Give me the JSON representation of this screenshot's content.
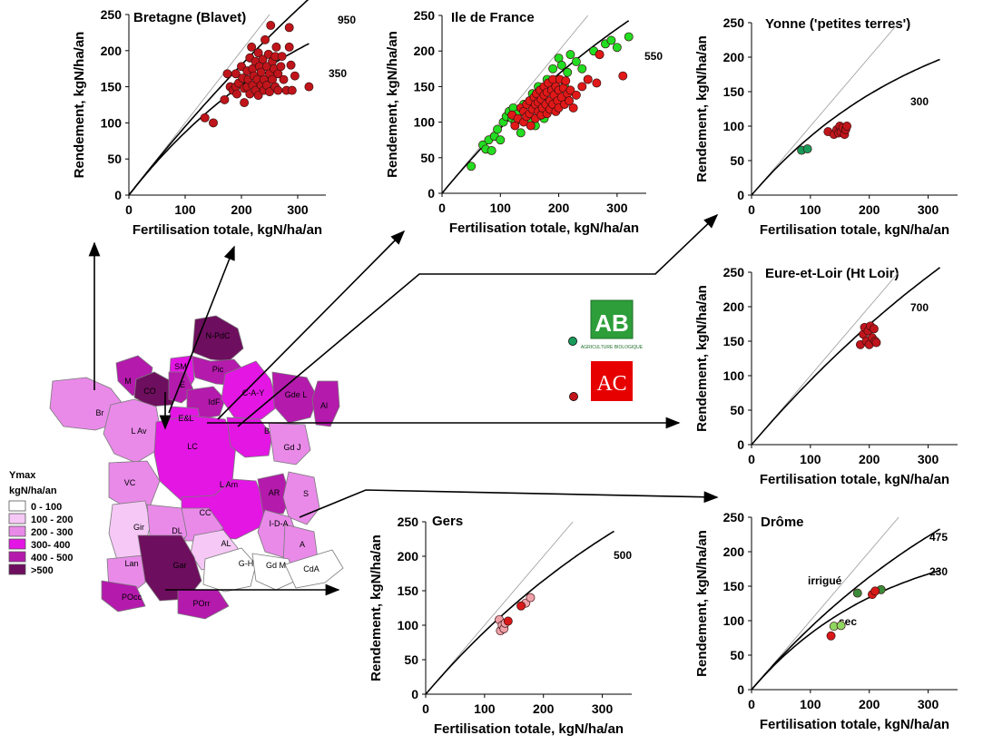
{
  "chart_data": [
    {
      "id": "bretagne",
      "type": "scatter",
      "title": "Bretagne (Blavet)",
      "xlabel": "Fertilisation totale, kgN/ha/an",
      "ylabel": "Rendement, kgN/ha/an",
      "xlim": [
        0,
        350
      ],
      "ylim": [
        0,
        250
      ],
      "xticks": [
        "0",
        "100",
        "200",
        "300"
      ],
      "yticks": [
        "0",
        "50",
        "100",
        "150",
        "200",
        "250"
      ],
      "curves": [
        {
          "ymax": 950,
          "label": "950"
        },
        {
          "ymax": 350,
          "label": "350"
        }
      ],
      "series": [
        {
          "color": "#c0151b",
          "points": [
            [
              135,
              107
            ],
            [
              150,
              100
            ],
            [
              170,
              132
            ],
            [
              175,
              168
            ],
            [
              180,
              150
            ],
            [
              185,
              145
            ],
            [
              190,
              168
            ],
            [
              190,
              150
            ],
            [
              192,
              140
            ],
            [
              195,
              155
            ],
            [
              200,
              178
            ],
            [
              202,
              162
            ],
            [
              205,
              148
            ],
            [
              205,
              128
            ],
            [
              210,
              172
            ],
            [
              210,
              150
            ],
            [
              212,
              160
            ],
            [
              215,
              190
            ],
            [
              215,
              140
            ],
            [
              218,
              205
            ],
            [
              220,
              175
            ],
            [
              220,
              152
            ],
            [
              222,
              165
            ],
            [
              225,
              185
            ],
            [
              225,
              145
            ],
            [
              228,
              160
            ],
            [
              230,
              197
            ],
            [
              230,
              138
            ],
            [
              232,
              178
            ],
            [
              235,
              170
            ],
            [
              235,
              152
            ],
            [
              238,
              188
            ],
            [
              240,
              160
            ],
            [
              240,
              145
            ],
            [
              242,
              215
            ],
            [
              245,
              178
            ],
            [
              245,
              152
            ],
            [
              248,
              195
            ],
            [
              250,
              168
            ],
            [
              250,
              143
            ],
            [
              252,
              235
            ],
            [
              255,
              185
            ],
            [
              255,
              160
            ],
            [
              258,
              175
            ],
            [
              260,
              150
            ],
            [
              260,
              192
            ],
            [
              262,
              205
            ],
            [
              265,
              168
            ],
            [
              265,
              145
            ],
            [
              270,
              178
            ],
            [
              272,
              192
            ],
            [
              275,
              160
            ],
            [
              280,
              145
            ],
            [
              285,
              232
            ],
            [
              285,
              205
            ],
            [
              288,
              180
            ],
            [
              290,
              145
            ],
            [
              295,
              165
            ],
            [
              320,
              150
            ]
          ]
        }
      ]
    },
    {
      "id": "idf",
      "type": "scatter",
      "title": "Ile de France",
      "xlabel": "Fertilisation totale, kgN/ha/an",
      "ylabel": "Rendement, kgN/ha/an",
      "xlim": [
        0,
        350
      ],
      "ylim": [
        0,
        250
      ],
      "xticks": [
        "0",
        "100",
        "200",
        "300"
      ],
      "yticks": [
        "0",
        "50",
        "100",
        "150",
        "200",
        "250"
      ],
      "curves": [
        {
          "ymax": 550,
          "label": "550"
        }
      ],
      "series": [
        {
          "color": "#22dd22",
          "points": [
            [
              50,
              38
            ],
            [
              70,
              68
            ],
            [
              75,
              62
            ],
            [
              80,
              75
            ],
            [
              85,
              60
            ],
            [
              90,
              80
            ],
            [
              95,
              90
            ],
            [
              100,
              75
            ],
            [
              105,
              100
            ],
            [
              110,
              108
            ],
            [
              115,
              115
            ],
            [
              120,
              105
            ],
            [
              122,
              120
            ],
            [
              125,
              98
            ],
            [
              130,
              112
            ],
            [
              135,
              85
            ],
            [
              140,
              125
            ],
            [
              145,
              110
            ],
            [
              150,
              130
            ],
            [
              150,
              100
            ],
            [
              155,
              140
            ],
            [
              160,
              118
            ],
            [
              160,
              95
            ],
            [
              165,
              150
            ],
            [
              170,
              135
            ],
            [
              175,
              105
            ],
            [
              180,
              160
            ],
            [
              185,
              145
            ],
            [
              190,
              175
            ],
            [
              195,
              120
            ],
            [
              200,
              190
            ],
            [
              200,
              160
            ],
            [
              205,
              180
            ],
            [
              210,
              150
            ],
            [
              215,
              170
            ],
            [
              220,
              195
            ],
            [
              230,
              185
            ],
            [
              240,
              175
            ],
            [
              250,
              160
            ],
            [
              260,
              200
            ],
            [
              270,
              195
            ],
            [
              280,
              210
            ],
            [
              290,
              215
            ],
            [
              300,
              205
            ],
            [
              320,
              220
            ]
          ]
        },
        {
          "color": "#e01818",
          "points": [
            [
              120,
              110
            ],
            [
              125,
              95
            ],
            [
              130,
              105
            ],
            [
              135,
              120
            ],
            [
              140,
              100
            ],
            [
              140,
              115
            ],
            [
              145,
              125
            ],
            [
              145,
              108
            ],
            [
              150,
              130
            ],
            [
              150,
              112
            ],
            [
              152,
              95
            ],
            [
              155,
              118
            ],
            [
              158,
              135
            ],
            [
              160,
              105
            ],
            [
              160,
              125
            ],
            [
              162,
              140
            ],
            [
              165,
              115
            ],
            [
              165,
              128
            ],
            [
              168,
              145
            ],
            [
              170,
              110
            ],
            [
              170,
              132
            ],
            [
              172,
              120
            ],
            [
              175,
              150
            ],
            [
              175,
              138
            ],
            [
              178,
              125
            ],
            [
              180,
              112
            ],
            [
              180,
              142
            ],
            [
              182,
              155
            ],
            [
              185,
              130
            ],
            [
              185,
              118
            ],
            [
              188,
              145
            ],
            [
              190,
              160
            ],
            [
              190,
              125
            ],
            [
              192,
              138
            ],
            [
              195,
              150
            ],
            [
              195,
              115
            ],
            [
              198,
              130
            ],
            [
              200,
              145
            ],
            [
              200,
              120
            ],
            [
              202,
              160
            ],
            [
              205,
              135
            ],
            [
              208,
              148
            ],
            [
              210,
              125
            ],
            [
              212,
              158
            ],
            [
              215,
              140
            ],
            [
              218,
              130
            ],
            [
              220,
              145
            ],
            [
              225,
              120
            ],
            [
              230,
              138
            ],
            [
              240,
              150
            ],
            [
              250,
              160
            ],
            [
              265,
              155
            ],
            [
              270,
              195
            ],
            [
              310,
              165
            ]
          ]
        }
      ]
    },
    {
      "id": "yonne",
      "type": "scatter",
      "title": "Yonne ('petites terres')",
      "xlabel": "Fertilisation totale, kgN/ha/an",
      "ylabel": "Rendement, kgN/ha/an",
      "xlim": [
        0,
        350
      ],
      "ylim": [
        0,
        250
      ],
      "xticks": [
        "0",
        "100",
        "200",
        "300"
      ],
      "yticks": [
        "0",
        "50",
        "100",
        "150",
        "200",
        "250"
      ],
      "curves": [
        {
          "ymax": 300,
          "label": "300"
        }
      ],
      "series": [
        {
          "color": "#1a9a5a",
          "points": [
            [
              85,
              65
            ],
            [
              95,
              67
            ]
          ]
        },
        {
          "color": "#c0151b",
          "points": [
            [
              130,
              92
            ],
            [
              140,
              88
            ],
            [
              145,
              95
            ],
            [
              148,
              90
            ],
            [
              150,
              100
            ],
            [
              152,
              92
            ],
            [
              155,
              98
            ],
            [
              158,
              88
            ],
            [
              160,
              95
            ],
            [
              162,
              100
            ]
          ]
        }
      ]
    },
    {
      "id": "eure",
      "type": "scatter",
      "title": "Eure-et-Loir (Ht Loir)",
      "xlabel": "Fertilisation totale, kgN/ha/an",
      "ylabel": "Rendement, kgN/ha/an",
      "xlim": [
        0,
        350
      ],
      "ylim": [
        0,
        250
      ],
      "xticks": [
        "0",
        "100",
        "200",
        "300"
      ],
      "yticks": [
        "0",
        "50",
        "100",
        "150",
        "200",
        "250"
      ],
      "curves": [
        {
          "ymax": 700,
          "label": "700"
        }
      ],
      "series": [
        {
          "color": "#c0151b",
          "points": [
            [
              185,
              145
            ],
            [
              190,
              160
            ],
            [
              192,
              170
            ],
            [
              195,
              150
            ],
            [
              198,
              165
            ],
            [
              200,
              145
            ],
            [
              202,
              172
            ],
            [
              205,
              155
            ],
            [
              208,
              168
            ],
            [
              210,
              150
            ],
            [
              212,
              148
            ]
          ]
        }
      ]
    },
    {
      "id": "gers",
      "type": "scatter",
      "title": "Gers",
      "xlabel": "Fertilisation totale, kgN/ha/an",
      "ylabel": "Rendement, kgN/ha/an",
      "xlim": [
        0,
        350
      ],
      "ylim": [
        0,
        250
      ],
      "xticks": [
        "0",
        "100",
        "200",
        "300"
      ],
      "yticks": [
        "0",
        "50",
        "100",
        "150",
        "200",
        "250"
      ],
      "curves": [
        {
          "ymax": 500,
          "label": "500"
        }
      ],
      "series": [
        {
          "color": "#f0a0a8",
          "points": [
            [
              125,
              108
            ],
            [
              127,
              92
            ],
            [
              130,
              100
            ],
            [
              133,
              95
            ],
            [
              135,
              103
            ],
            [
              170,
              132
            ],
            [
              178,
              140
            ]
          ]
        },
        {
          "color": "#d81818",
          "points": [
            [
              140,
              106
            ],
            [
              162,
              128
            ]
          ]
        }
      ]
    },
    {
      "id": "drome",
      "type": "scatter",
      "title": "Drôme",
      "xlabel": "Fertilisation totale, kgN/ha/an",
      "ylabel": "Rendement, kgN/ha/an",
      "xlim": [
        0,
        350
      ],
      "ylim": [
        0,
        250
      ],
      "xticks": [
        "0",
        "100",
        "200",
        "300"
      ],
      "yticks": [
        "0",
        "50",
        "100",
        "150",
        "200",
        "250"
      ],
      "curves": [
        {
          "ymax": 475,
          "label": "475"
        },
        {
          "ymax": 230,
          "label": "230"
        }
      ],
      "annotations": [
        "irrigué",
        "sec"
      ],
      "series": [
        {
          "color": "#3a8a3a",
          "points": [
            [
              180,
              140
            ],
            [
              220,
              145
            ]
          ]
        },
        {
          "color": "#8fd860",
          "points": [
            [
              140,
              92
            ],
            [
              152,
              93
            ]
          ]
        },
        {
          "color": "#d81818",
          "points": [
            [
              135,
              78
            ],
            [
              205,
              138
            ],
            [
              210,
              143
            ]
          ]
        }
      ]
    }
  ],
  "map": {
    "legend_title": "Ymax",
    "legend_unit": "kgN/ha/an",
    "legend_items": [
      {
        "label": "0 - 100",
        "color": "#ffffff"
      },
      {
        "label": "100 - 200",
        "color": "#f6c8f6"
      },
      {
        "label": "200 - 300",
        "color": "#e98ae9"
      },
      {
        "label": "300- 400",
        "color": "#e316e3"
      },
      {
        "label": "400 - 500",
        "color": "#b41aac"
      },
      {
        "label": ">500",
        "color": "#6e0e5e"
      }
    ],
    "regions": [
      "N-PdC",
      "Pic",
      "SM",
      "M",
      "CO",
      "E",
      "IdF",
      "E&L",
      "C-A-Y",
      "Gde L",
      "Al",
      "Br",
      "L Av",
      "LC",
      "B",
      "Gd J",
      "VC",
      "L Am",
      "AR",
      "S",
      "I-D-A",
      "CC",
      "Gir",
      "DL",
      "AL",
      "A",
      "Lan",
      "Gar",
      "G-H",
      "Gd M",
      "CdA",
      "POcc",
      "POrr"
    ]
  },
  "legend": {
    "ab_logo": "AB",
    "ab_caption": "AGRICULTURE BIOLOGIQUE",
    "ac_logo": "AC",
    "ab_dot_color": "#1a9a5a",
    "ac_dot_color": "#c0151b"
  }
}
